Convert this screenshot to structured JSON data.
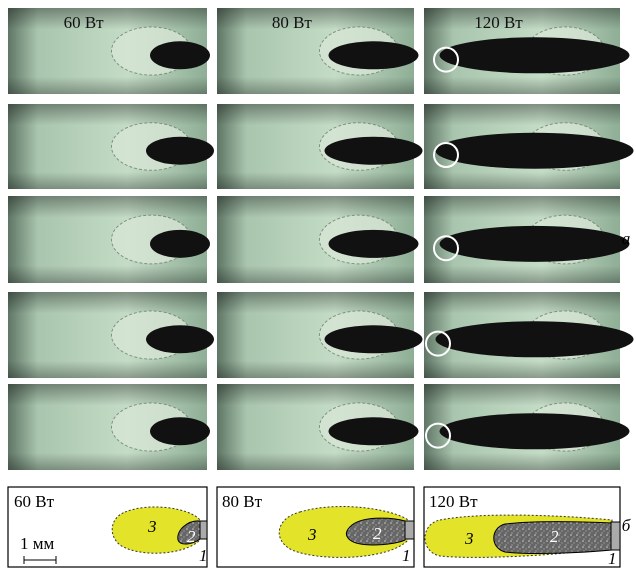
{
  "photo_columns": [
    {
      "label": "60 Вт"
    },
    {
      "label": "80 Вт"
    },
    {
      "label": "120 Вт"
    }
  ],
  "panel_labels": {
    "a": "а",
    "b": "б"
  },
  "schematics": [
    {
      "label": "60 Вт",
      "zones": [
        "3",
        "2",
        "1"
      ]
    },
    {
      "label": "80 Вт",
      "zones": [
        "3",
        "2",
        "1"
      ]
    },
    {
      "label": "120 Вт",
      "zones": [
        "3",
        "2",
        "1"
      ]
    }
  ],
  "scale_bar": "1 мм"
}
